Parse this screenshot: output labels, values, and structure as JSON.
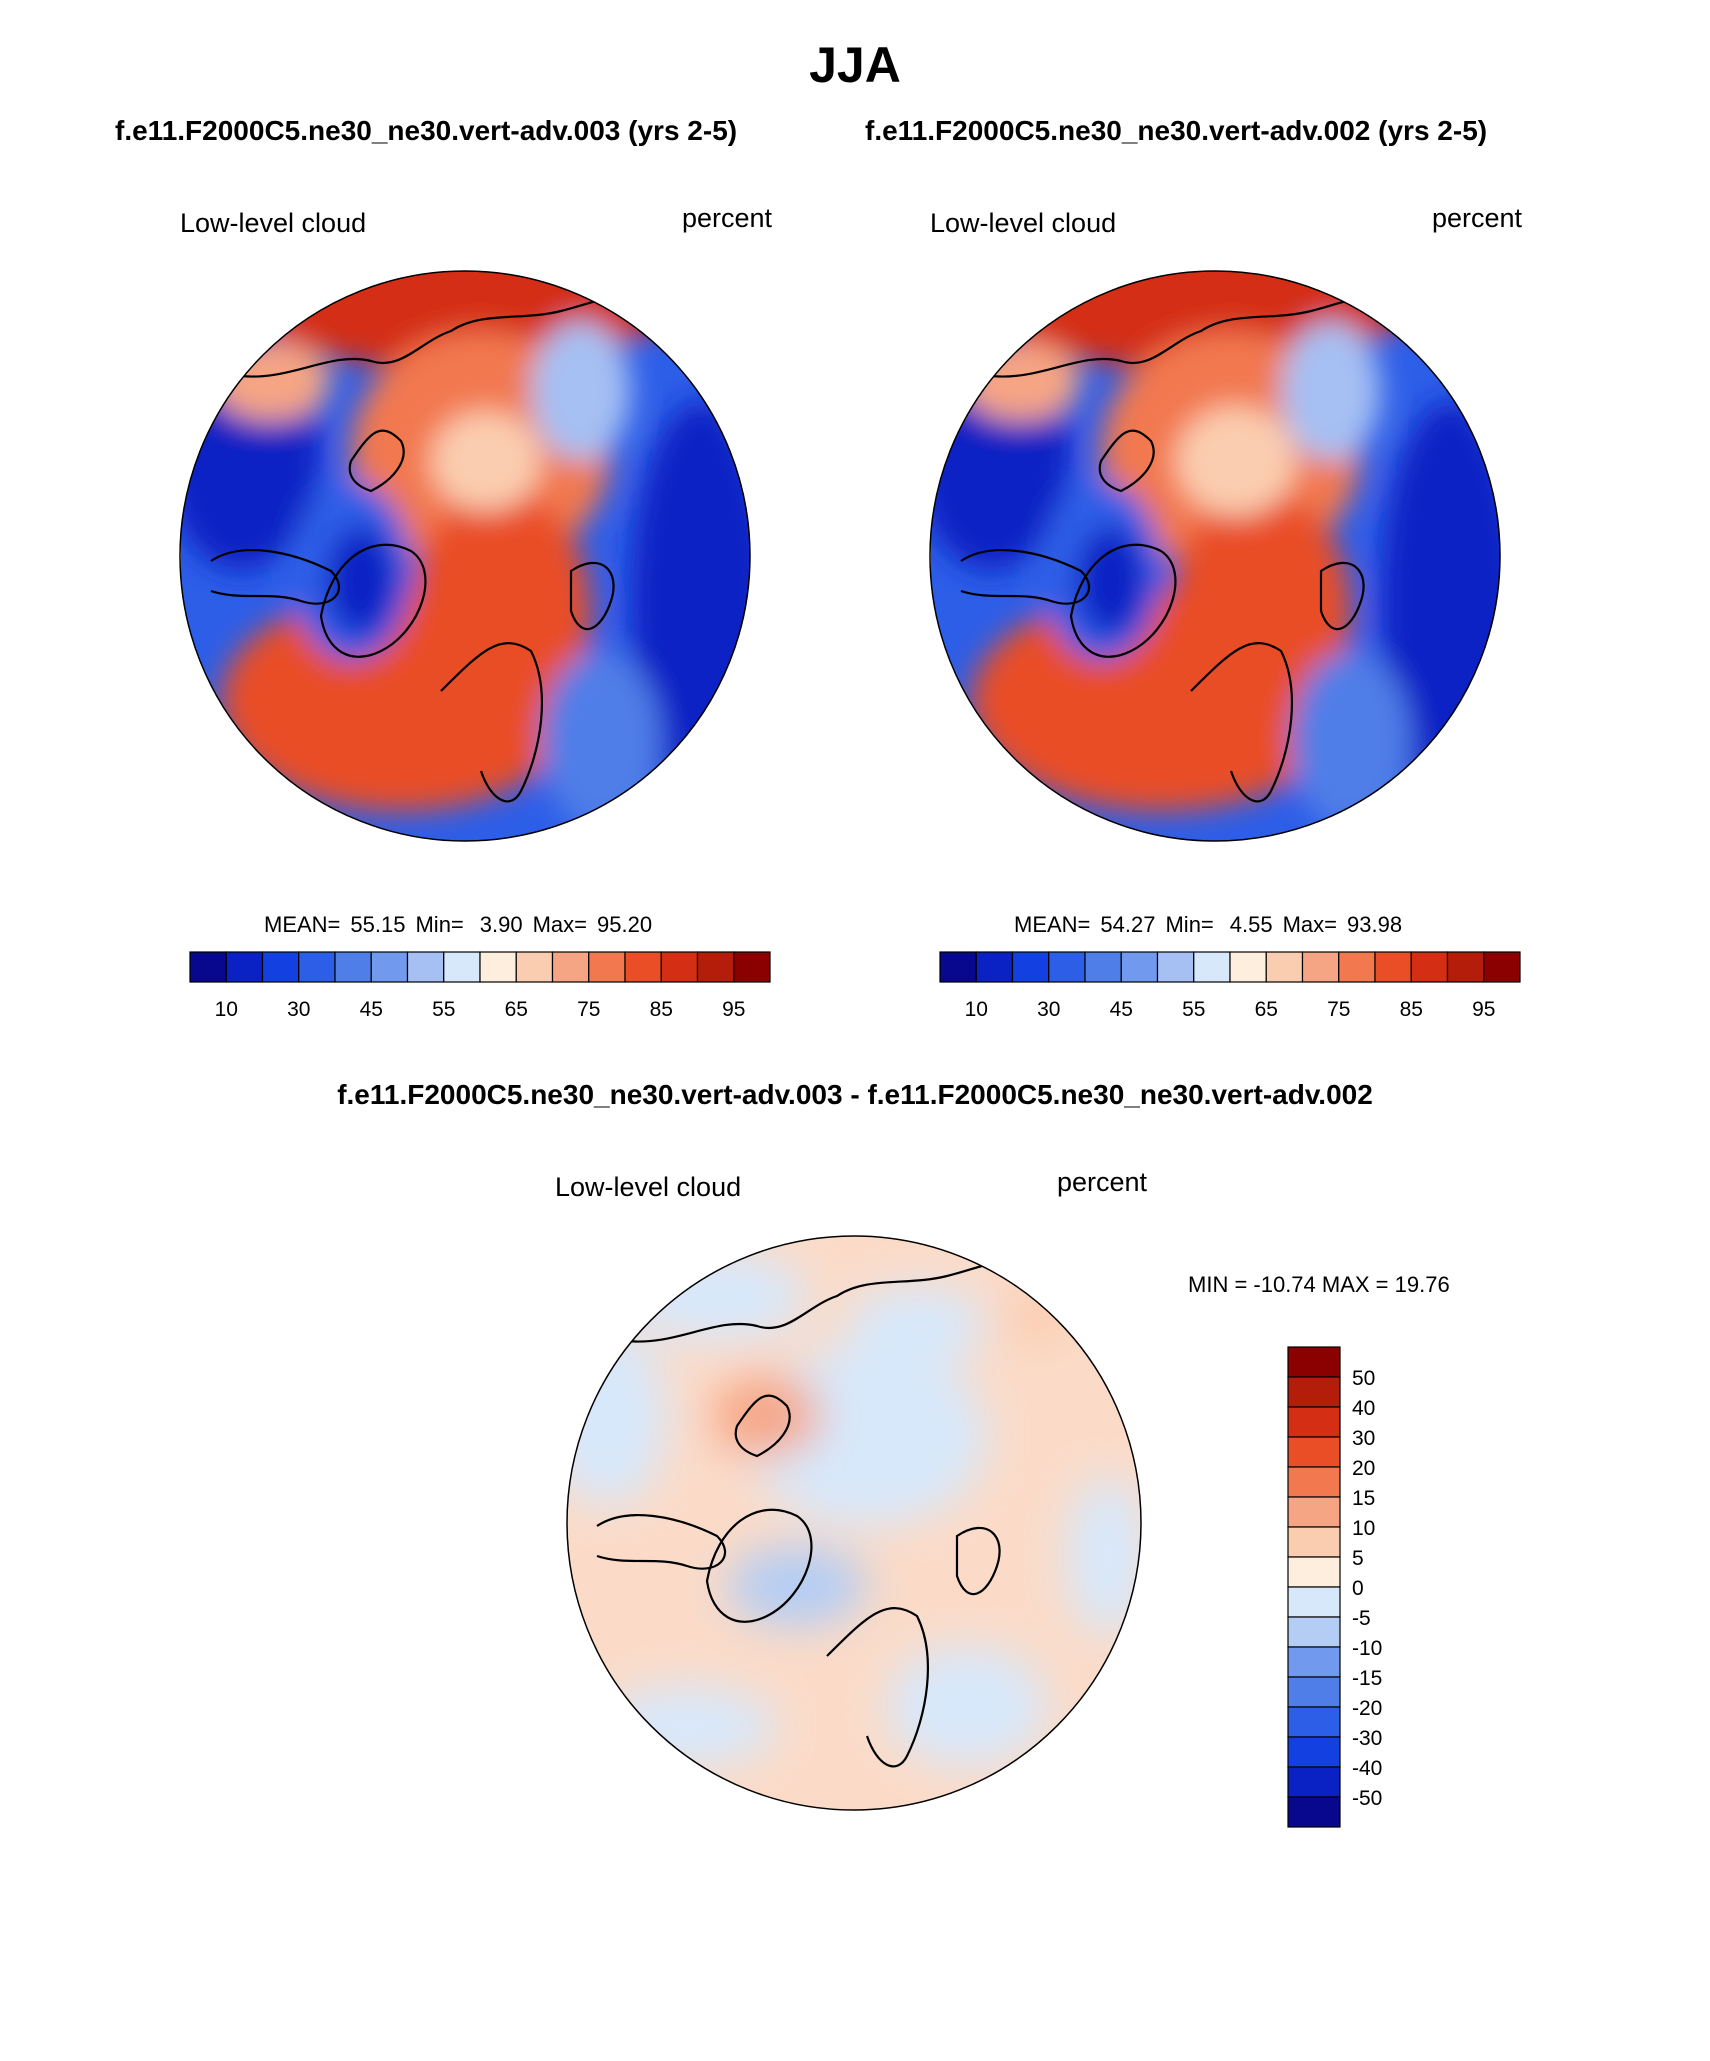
{
  "figure": {
    "season": "JJA",
    "case_test_label": "f.e11.F2000C5.ne30_ne30.vert-adv.003 (yrs 2-5)",
    "case_ctrl_label": "f.e11.F2000C5.ne30_ne30.vert-adv.002 (yrs 2-5)",
    "diff_label": "f.e11.F2000C5.ne30_ne30.vert-adv.003 - f.e11.F2000C5.ne30_ne30.vert-adv.002"
  },
  "panels": [
    {
      "variable": "Low-level cloud",
      "units": "percent",
      "stats": {
        "mean_label": "MEAN=",
        "mean": "55.15",
        "min_label": "Min=",
        "min": "3.90",
        "max_label": "Max=",
        "max": "95.20"
      }
    },
    {
      "variable": "Low-level cloud",
      "units": "percent",
      "stats": {
        "mean_label": "MEAN=",
        "mean": "54.27",
        "min_label": "Min=",
        "min": "4.55",
        "max_label": "Max=",
        "max": "93.98"
      }
    },
    {
      "variable": "Low-level cloud",
      "units": "percent",
      "stats_text": "MIN = -10.74 MAX =  19.76"
    }
  ],
  "colorbar_main": {
    "tick_labels": [
      "10",
      "30",
      "45",
      "55",
      "65",
      "75",
      "85",
      "95"
    ],
    "colors": [
      "#08088e",
      "#0a21c4",
      "#1340e0",
      "#2d5ee8",
      "#4f7ee8",
      "#7199ee",
      "#a6c0f3",
      "#d7e8fb",
      "#fdeede",
      "#fbcdb0",
      "#f6a584",
      "#f2784f",
      "#e94e26",
      "#d42e14",
      "#b31d0a",
      "#8b0000"
    ]
  },
  "colorbar_diff": {
    "tick_labels": [
      "50",
      "40",
      "30",
      "20",
      "15",
      "10",
      "5",
      "0",
      "-5",
      "-10",
      "-15",
      "-20",
      "-30",
      "-40",
      "-50"
    ],
    "colors": [
      "#8b0000",
      "#b31d0a",
      "#d42e14",
      "#e94e26",
      "#f2784f",
      "#f6a584",
      "#fbcdb0",
      "#fdeede",
      "#d7e8fb",
      "#b3cdf5",
      "#7199ee",
      "#4f7ee8",
      "#2d5ee8",
      "#1340e0",
      "#0a21c4",
      "#08088e"
    ]
  },
  "map_colors": {
    "ocean_blue": "#2d5ee8",
    "deep_blue": "#0a21c4",
    "arctic_orange": "#f2784f",
    "arctic_light": "#fbcdb0",
    "strong_red": "#d42e14",
    "diff_light_red": "#fbdbc8",
    "diff_light_blue": "#d7e8fb"
  }
}
